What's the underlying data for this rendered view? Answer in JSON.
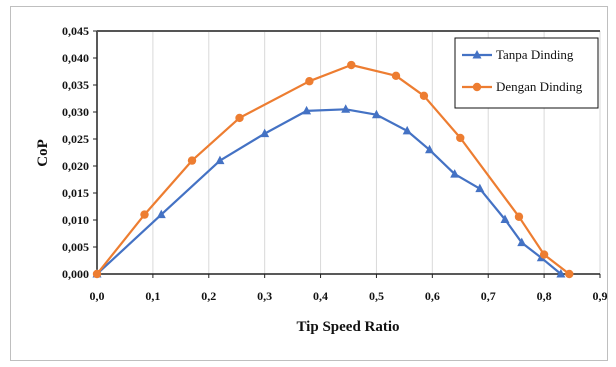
{
  "chart_data": {
    "type": "line",
    "title": "",
    "xlabel": "Tip Speed Ratio",
    "ylabel": "CoP",
    "xlim": [
      0,
      0.9
    ],
    "ylim": [
      0,
      0.045
    ],
    "x_ticks": [
      "0,0",
      "0,1",
      "0,2",
      "0,3",
      "0,4",
      "0,5",
      "0,6",
      "0,7",
      "0,8",
      "0,9"
    ],
    "y_ticks": [
      "0,000",
      "0,005",
      "0,010",
      "0,015",
      "0,020",
      "0,025",
      "0,030",
      "0,035",
      "0,040",
      "0,045"
    ],
    "grid": "vertical",
    "legend_position": "top-right",
    "series": [
      {
        "name": "Tanpa Dinding",
        "color": "#4472C4",
        "marker": "triangle",
        "x": [
          0,
          0.115,
          0.22,
          0.3,
          0.375,
          0.445,
          0.5,
          0.555,
          0.595,
          0.64,
          0.685,
          0.73,
          0.76,
          0.795,
          0.83
        ],
        "y": [
          0,
          0.011,
          0.021,
          0.026,
          0.0302,
          0.0305,
          0.0295,
          0.0265,
          0.023,
          0.0185,
          0.0158,
          0.0101,
          0.0058,
          0.003,
          0
        ]
      },
      {
        "name": "Dengan Dinding",
        "color": "#ED7D31",
        "marker": "circle",
        "x": [
          0,
          0.085,
          0.17,
          0.255,
          0.38,
          0.455,
          0.535,
          0.585,
          0.65,
          0.755,
          0.8,
          0.845
        ],
        "y": [
          0,
          0.011,
          0.021,
          0.0289,
          0.0357,
          0.0387,
          0.0367,
          0.033,
          0.0252,
          0.0106,
          0.0036,
          0
        ]
      }
    ]
  }
}
